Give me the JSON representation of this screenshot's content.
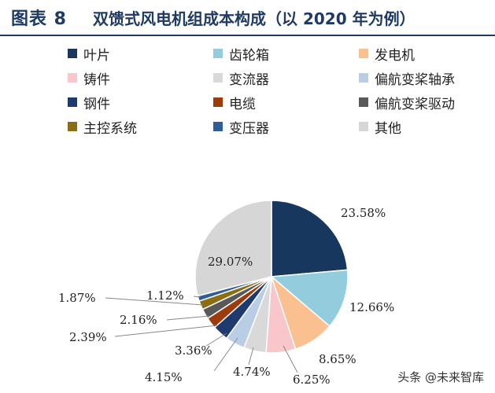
{
  "header": {
    "figure_number": "图表 8",
    "title": "双馈式风电机组成本构成（以 2020 年为例）"
  },
  "watermark": "头条 @未来智库",
  "chart_data": {
    "type": "pie",
    "title": "双馈式风电机组成本构成（以 2020 年为例）",
    "legend_placement": "top",
    "slices": [
      {
        "name": "叶片",
        "value": 23.58,
        "label": "23.58%",
        "color": "#17375e"
      },
      {
        "name": "齿轮箱",
        "value": 12.66,
        "label": "12.66%",
        "color": "#93cddd"
      },
      {
        "name": "发电机",
        "value": 8.65,
        "label": "8.65%",
        "color": "#fac090"
      },
      {
        "name": "铸件",
        "value": 6.25,
        "label": "6.25%",
        "color": "#f9c6cc"
      },
      {
        "name": "变流器",
        "value": 4.74,
        "label": "4.74%",
        "color": "#d9d9d9"
      },
      {
        "name": "偏航变桨轴承",
        "value": 4.15,
        "label": "4.15%",
        "color": "#b9cde5"
      },
      {
        "name": "钢件",
        "value": 3.36,
        "label": "3.36%",
        "color": "#1f3a6e"
      },
      {
        "name": "电缆",
        "value": 2.39,
        "label": "2.39%",
        "color": "#9c3c0c"
      },
      {
        "name": "偏航变桨驱动",
        "value": 2.16,
        "label": "2.16%",
        "color": "#595959"
      },
      {
        "name": "主控系统",
        "value": 1.87,
        "label": "1.87%",
        "color": "#8c6d14"
      },
      {
        "name": "变压器",
        "value": 1.12,
        "label": "1.12%",
        "color": "#2e5d99"
      },
      {
        "name": "其他",
        "value": 29.07,
        "label": "29.07%",
        "color": "#d6d6d6"
      }
    ]
  }
}
